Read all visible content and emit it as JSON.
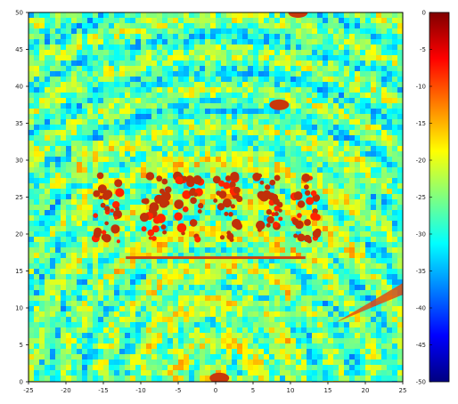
{
  "chart_data": {
    "type": "heatmap",
    "title": "",
    "xlabel": "",
    "ylabel": "",
    "xlim": [
      -25,
      25
    ],
    "ylim": [
      0,
      50
    ],
    "x_ticks": [
      -25,
      -20,
      -15,
      -10,
      -5,
      0,
      5,
      10,
      15,
      20,
      25
    ],
    "y_ticks": [
      0,
      5,
      10,
      15,
      20,
      25,
      30,
      35,
      40,
      45,
      50
    ],
    "colorbar": {
      "range": [
        -50,
        0
      ],
      "ticks": [
        0,
        -5,
        -10,
        -15,
        -20,
        -25,
        -30,
        -35,
        -40,
        -45,
        -50
      ],
      "colormap": "jet"
    },
    "features": [
      {
        "desc": "six high-intensity target columns",
        "x_centers": [
          -14.5,
          -8,
          -3.5,
          1.5,
          7,
          12
        ],
        "y_range": [
          19,
          28
        ],
        "level": -5
      },
      {
        "desc": "horizontal bright line",
        "x_range": [
          -12,
          12
        ],
        "y": 16.8,
        "level": -8
      },
      {
        "desc": "bright streak lower right",
        "x_range": [
          16,
          25
        ],
        "y_range": [
          8,
          13
        ],
        "level": -6
      },
      {
        "desc": "bright spot near origin",
        "x": 0.5,
        "y": 0.5,
        "level": -8
      },
      {
        "desc": "bright spot top",
        "x": 11,
        "y": 50,
        "level": -8
      },
      {
        "desc": "spot upper",
        "x": 8.5,
        "y": 37.5,
        "level": -9
      }
    ],
    "grid": false,
    "legend": "colorbar-right"
  }
}
